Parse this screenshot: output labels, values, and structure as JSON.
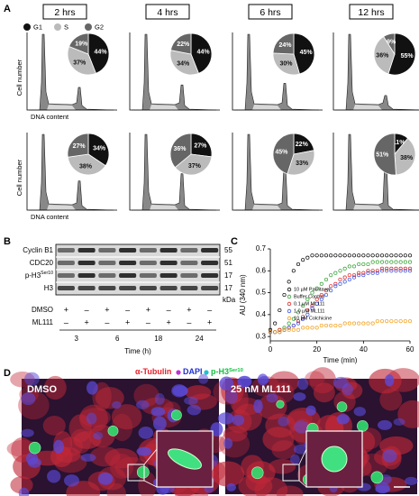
{
  "panel_labels": [
    "A",
    "B",
    "C",
    "D"
  ],
  "panel_a": {
    "time_labels": [
      "2 hrs",
      "4 hrs",
      "6 hrs",
      "12 hrs"
    ],
    "y_label": "Cell number",
    "x_label": "DNA content",
    "legend": [
      "G1",
      "S",
      "G2"
    ],
    "legend_colors": [
      "#111111",
      "#bbbbbb",
      "#666666"
    ]
  },
  "chart_data": [
    {
      "type": "pie",
      "values": [
        44,
        37,
        19
      ],
      "value_labels": [
        "44%",
        "37%",
        "19%"
      ]
    },
    {
      "type": "pie",
      "values": [
        44,
        34,
        22
      ],
      "value_labels": [
        "44%",
        "34%",
        "22%"
      ]
    },
    {
      "type": "pie",
      "values": [
        45,
        30,
        24
      ],
      "value_labels": [
        "45%",
        "30%",
        "24%"
      ]
    },
    {
      "type": "pie",
      "values": [
        55,
        36,
        9
      ],
      "value_labels": [
        "55%",
        "36%",
        "9%"
      ]
    },
    {
      "type": "pie",
      "values": [
        34,
        38,
        27
      ],
      "value_labels": [
        "34%",
        "38%",
        "27%"
      ]
    },
    {
      "type": "pie",
      "values": [
        27,
        37,
        36
      ],
      "value_labels": [
        "27%",
        "37%",
        "36%"
      ]
    },
    {
      "type": "pie",
      "values": [
        22,
        33,
        45
      ],
      "value_labels": [
        "22%",
        "33%",
        "45%"
      ]
    },
    {
      "type": "pie",
      "values": [
        11,
        38,
        51
      ],
      "value_labels": [
        "11%",
        "38%",
        "51%"
      ]
    },
    {
      "type": "scatter",
      "x_label": "Time (min)",
      "y_label": "AU (340 nm)",
      "xlim": [
        0,
        60
      ],
      "xticks": [
        0,
        20,
        40,
        60
      ],
      "ylim": [
        0.28,
        0.7
      ],
      "yticks": [
        0.3,
        0.4,
        0.5,
        0.6,
        0.7
      ],
      "x": [
        0,
        2,
        4,
        6,
        8,
        10,
        12,
        14,
        16,
        18,
        20,
        22,
        24,
        26,
        28,
        30,
        32,
        34,
        36,
        38,
        40,
        42,
        44,
        46,
        48,
        50,
        52,
        54,
        56,
        58,
        60
      ],
      "series": [
        {
          "name": "10 µM Paclitaxel",
          "color": "#000000",
          "values": [
            0.33,
            0.36,
            0.42,
            0.49,
            0.55,
            0.6,
            0.63,
            0.65,
            0.66,
            0.67,
            0.67,
            0.67,
            0.67,
            0.67,
            0.67,
            0.67,
            0.67,
            0.67,
            0.67,
            0.67,
            0.67,
            0.67,
            0.67,
            0.67,
            0.67,
            0.67,
            0.67,
            0.67,
            0.67,
            0.67,
            0.67
          ]
        },
        {
          "name": "Buffer Control",
          "color": "#2ca02c",
          "values": [
            0.32,
            0.32,
            0.33,
            0.34,
            0.36,
            0.38,
            0.41,
            0.44,
            0.47,
            0.5,
            0.52,
            0.54,
            0.56,
            0.58,
            0.59,
            0.6,
            0.61,
            0.62,
            0.62,
            0.63,
            0.63,
            0.63,
            0.64,
            0.64,
            0.64,
            0.64,
            0.64,
            0.64,
            0.64,
            0.64,
            0.64
          ]
        },
        {
          "name": "0.1 µM ML111",
          "color": "#e02020",
          "values": [
            0.32,
            0.32,
            0.33,
            0.33,
            0.34,
            0.35,
            0.37,
            0.39,
            0.42,
            0.44,
            0.47,
            0.49,
            0.51,
            0.53,
            0.54,
            0.56,
            0.57,
            0.58,
            0.58,
            0.59,
            0.59,
            0.6,
            0.6,
            0.6,
            0.61,
            0.61,
            0.61,
            0.61,
            0.61,
            0.61,
            0.61
          ]
        },
        {
          "name": "1.0 µM ML111",
          "color": "#3050e0",
          "values": [
            0.32,
            0.32,
            0.32,
            0.33,
            0.34,
            0.35,
            0.36,
            0.38,
            0.4,
            0.43,
            0.45,
            0.47,
            0.49,
            0.51,
            0.53,
            0.54,
            0.55,
            0.56,
            0.57,
            0.58,
            0.58,
            0.59,
            0.59,
            0.59,
            0.6,
            0.6,
            0.6,
            0.6,
            0.6,
            0.6,
            0.6
          ]
        },
        {
          "name": "10 µM Colchicine",
          "color": "#f39c12",
          "values": [
            0.32,
            0.32,
            0.32,
            0.33,
            0.33,
            0.33,
            0.33,
            0.34,
            0.34,
            0.34,
            0.34,
            0.35,
            0.35,
            0.35,
            0.35,
            0.35,
            0.36,
            0.36,
            0.36,
            0.36,
            0.36,
            0.36,
            0.36,
            0.37,
            0.37,
            0.37,
            0.37,
            0.37,
            0.37,
            0.37,
            0.37
          ]
        }
      ]
    }
  ],
  "panel_b": {
    "proteins": [
      {
        "base": "Cyclin B1"
      },
      {
        "base": "CDC20"
      },
      {
        "base": "p-H3",
        "sup": "Ser10"
      },
      {
        "base": "H3"
      }
    ],
    "sizes": [
      55,
      51,
      17,
      17
    ],
    "size_unit": "kDa",
    "treatments": [
      {
        "name": "DMSO",
        "signs": [
          "+",
          "–",
          "+",
          "–",
          "+",
          "–",
          "+",
          "–"
        ]
      },
      {
        "name": "ML111",
        "signs": [
          "–",
          "+",
          "–",
          "+",
          "–",
          "+",
          "–",
          "+"
        ]
      }
    ],
    "times": [
      3,
      6,
      18,
      24
    ],
    "time_label": "Time (h)"
  },
  "panel_d": {
    "stains": [
      {
        "base": "α-Tubulin",
        "color": "#e8202a"
      },
      {
        "base": "DAPI",
        "color": "#2030d0"
      },
      {
        "base": "p-H3",
        "sup": "Ser10",
        "color": "#10c040"
      }
    ],
    "images": [
      "DMSO",
      "25 nM ML111"
    ]
  }
}
